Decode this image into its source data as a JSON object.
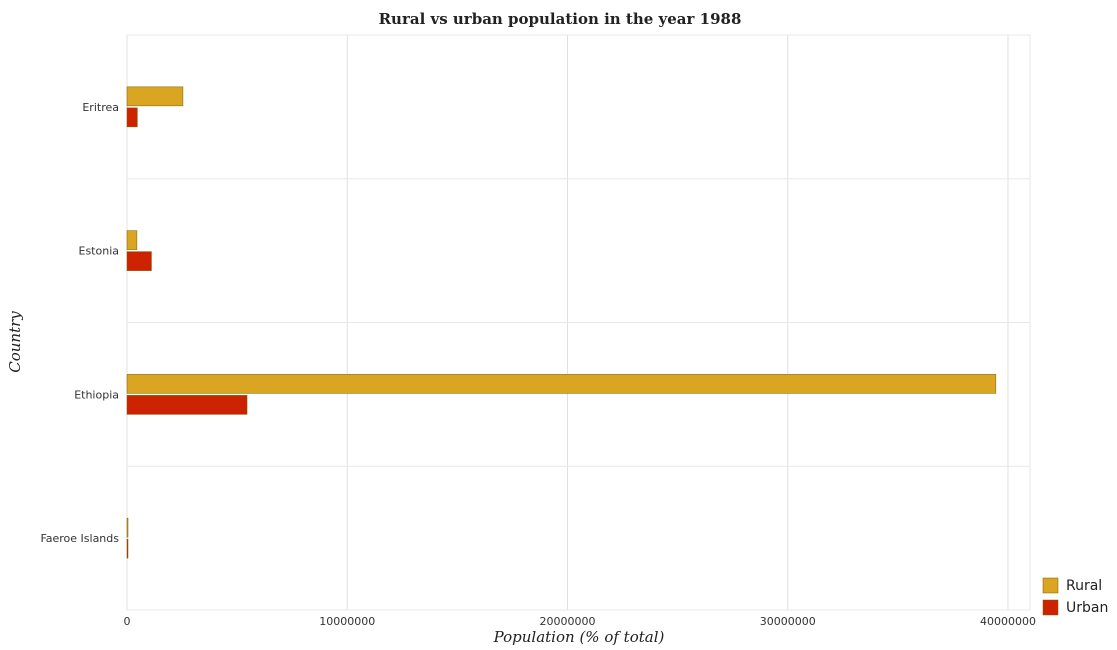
{
  "chart_data": {
    "type": "bar",
    "orientation": "horizontal",
    "title": "Rural vs urban population in the year 1988",
    "xlabel": "Population (% of total)",
    "ylabel": "Country",
    "categories": [
      "Eritrea",
      "Estonia",
      "Ethiopia",
      "Faeroe Islands"
    ],
    "series": [
      {
        "name": "Rural",
        "color": "#daa520",
        "values": [
          2540000,
          450000,
          39450000,
          30000
        ]
      },
      {
        "name": "Urban",
        "color": "#cc2200",
        "values": [
          470000,
          1110000,
          5450000,
          16000
        ]
      }
    ],
    "xlim": [
      0,
      41000000
    ],
    "xticks": [
      0,
      10000000,
      20000000,
      30000000,
      40000000
    ],
    "xtick_labels": [
      "0",
      "10000000",
      "20000000",
      "30000000",
      "40000000"
    ],
    "grid": true,
    "legend_position": "bottom-right"
  }
}
